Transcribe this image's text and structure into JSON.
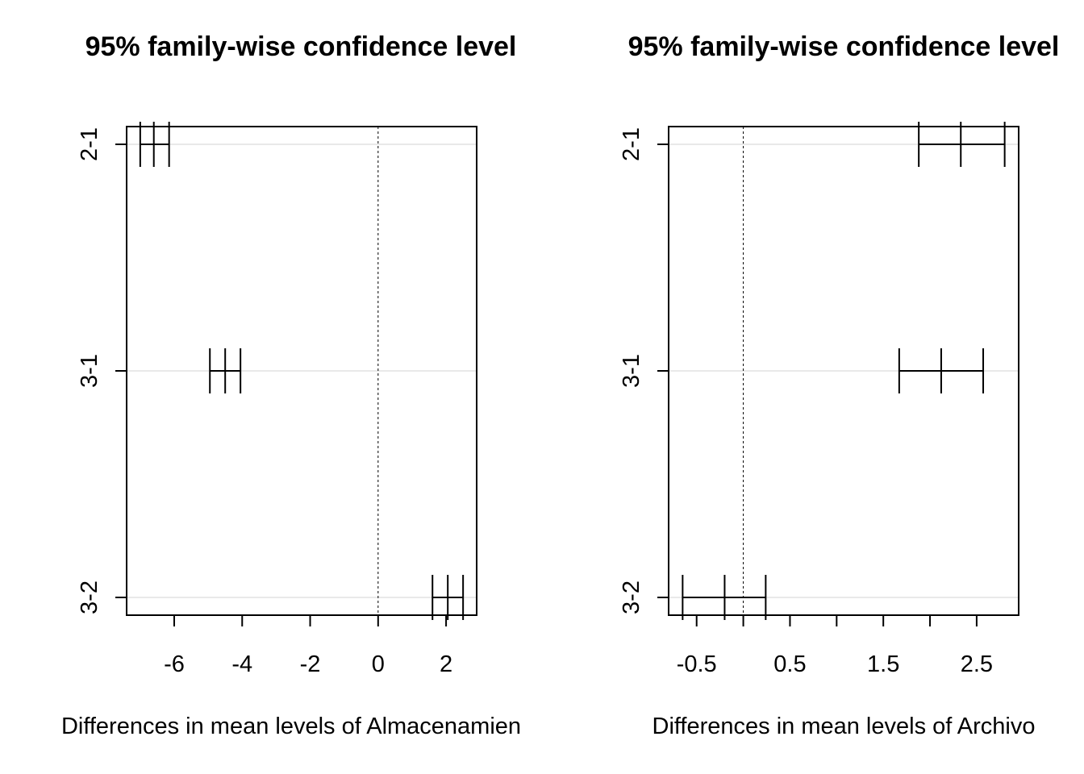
{
  "chart_data": [
    {
      "type": "errorbar",
      "title": "95% family-wise confidence level",
      "xlabel": "Differences in mean levels of Almacenamien",
      "ylabel": "",
      "xlim": [
        -7.4,
        2.9
      ],
      "xticks": [
        -6,
        -4,
        -2,
        0,
        2
      ],
      "xtick_labels": [
        "-6",
        "-4",
        "-2",
        "0",
        "2"
      ],
      "reference_line": 0,
      "comparisons": [
        {
          "label": "2-1",
          "lwr": -7.0,
          "diff": -6.6,
          "upr": -6.15
        },
        {
          "label": "3-1",
          "lwr": -4.95,
          "diff": -4.5,
          "upr": -4.05
        },
        {
          "label": "3-2",
          "lwr": 1.6,
          "diff": 2.05,
          "upr": 2.5
        }
      ]
    },
    {
      "type": "errorbar",
      "title": "95% family-wise confidence level",
      "xlabel": "Differences in mean levels of Archivo",
      "ylabel": "",
      "xlim": [
        -0.8,
        2.95
      ],
      "xticks": [
        -0.5,
        0,
        0.5,
        1,
        1.5,
        2,
        2.5
      ],
      "xtick_labels": [
        "-0.5",
        "",
        "0.5",
        "",
        "1.5",
        "",
        "2.5"
      ],
      "reference_line": 0,
      "comparisons": [
        {
          "label": "2-1",
          "lwr": 1.88,
          "diff": 2.33,
          "upr": 2.8
        },
        {
          "label": "3-1",
          "lwr": 1.67,
          "diff": 2.12,
          "upr": 2.57
        },
        {
          "label": "3-2",
          "lwr": -0.65,
          "diff": -0.2,
          "upr": 0.24
        }
      ]
    }
  ]
}
